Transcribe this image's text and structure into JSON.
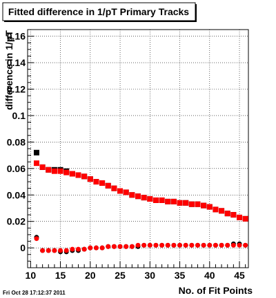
{
  "chart_data": {
    "type": "scatter",
    "title": "Fitted difference in 1/pT Primary Tracks",
    "xlabel": "No. of Fit Points",
    "ylabel": "difference in 1/pT",
    "xlim": [
      9.5,
      46.5
    ],
    "ylim": [
      -0.015,
      0.165
    ],
    "x_ticks": [
      10,
      15,
      20,
      25,
      30,
      35,
      40,
      45
    ],
    "y_ticks": [
      0,
      0.02,
      0.04,
      0.06,
      0.08,
      0.1,
      0.12,
      0.14,
      0.16
    ],
    "x_tick_labels": [
      "10",
      "15",
      "20",
      "25",
      "30",
      "35",
      "40",
      "45"
    ],
    "y_tick_labels": [
      "0",
      "0.02",
      "0.04",
      "0.06",
      "0.08",
      "0.1",
      "0.12",
      "0.14",
      "0.16"
    ],
    "grid": true,
    "x": [
      11,
      12,
      13,
      14,
      15,
      16,
      17,
      18,
      19,
      20,
      21,
      22,
      23,
      24,
      25,
      26,
      27,
      28,
      29,
      30,
      31,
      32,
      33,
      34,
      35,
      36,
      37,
      38,
      39,
      40,
      41,
      42,
      43,
      44,
      45,
      46
    ],
    "series": [
      {
        "marker": "square",
        "color": "#000000",
        "values": [
          0.072,
          0.061,
          0.059,
          0.059,
          0.059,
          0.058,
          0.056,
          0.055,
          0.054,
          0.052,
          0.05,
          0.049,
          0.047,
          0.045,
          0.043,
          0.042,
          0.04,
          0.039,
          0.038,
          0.037,
          0.036,
          0.036,
          0.035,
          0.035,
          0.034,
          0.034,
          0.033,
          0.033,
          0.032,
          0.031,
          0.029,
          0.028,
          0.026,
          0.025,
          0.023,
          0.022
        ]
      },
      {
        "marker": "square",
        "color": "#ff0000",
        "values": [
          0.064,
          0.061,
          0.059,
          0.058,
          0.058,
          0.057,
          0.056,
          0.055,
          0.054,
          0.052,
          0.05,
          0.049,
          0.047,
          0.045,
          0.043,
          0.042,
          0.04,
          0.039,
          0.038,
          0.037,
          0.036,
          0.036,
          0.035,
          0.035,
          0.034,
          0.034,
          0.033,
          0.033,
          0.032,
          0.031,
          0.029,
          0.028,
          0.026,
          0.025,
          0.023,
          0.022
        ]
      },
      {
        "marker": "circle",
        "color": "#000000",
        "values": [
          0.008,
          -0.002,
          -0.002,
          -0.002,
          -0.003,
          -0.003,
          -0.002,
          -0.002,
          -0.001,
          0.0,
          0.0,
          0.0,
          0.001,
          0.001,
          0.001,
          0.001,
          0.001,
          0.001,
          0.002,
          0.002,
          0.002,
          0.002,
          0.002,
          0.002,
          0.002,
          0.002,
          0.002,
          0.002,
          0.002,
          0.002,
          0.002,
          0.002,
          0.002,
          0.003,
          0.003,
          0.002
        ]
      },
      {
        "marker": "circle",
        "color": "#ff0000",
        "values": [
          0.007,
          -0.002,
          -0.002,
          -0.002,
          -0.002,
          -0.002,
          -0.001,
          -0.001,
          -0.001,
          0.0,
          0.0,
          0.0,
          0.001,
          0.001,
          0.001,
          0.001,
          0.001,
          0.002,
          0.002,
          0.002,
          0.002,
          0.002,
          0.002,
          0.002,
          0.002,
          0.002,
          0.002,
          0.002,
          0.002,
          0.002,
          0.002,
          0.002,
          0.002,
          0.002,
          0.002,
          0.002
        ]
      }
    ]
  },
  "footer": {
    "timestamp": "Fri Oct 28 17:12:37 2011"
  }
}
